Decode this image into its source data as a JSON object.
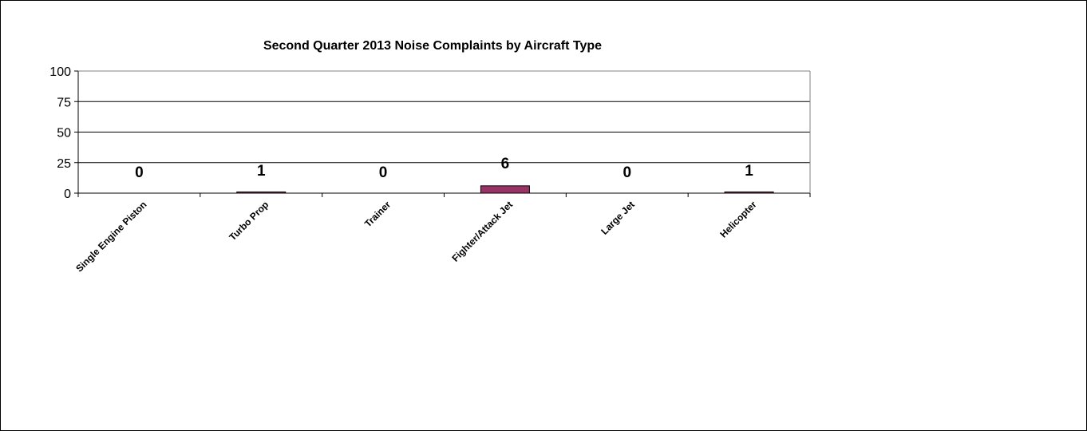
{
  "chart_data": {
    "type": "bar",
    "title": "Second Quarter 2013 Noise Complaints by Aircraft Type",
    "categories": [
      "Single Engine Piston",
      "Turbo Prop",
      "Trainer",
      "Fighter/Attack Jet",
      "Large Jet",
      "Helicopter"
    ],
    "values": [
      0,
      1,
      0,
      6,
      0,
      1
    ],
    "data_labels": [
      "0",
      "1",
      "0",
      "6",
      "0",
      "1"
    ],
    "xlabel": "",
    "ylabel": "",
    "ylim": [
      0,
      100
    ],
    "yticks": [
      0,
      25,
      50,
      75,
      100
    ],
    "ytick_labels": [
      "0",
      "25",
      "50",
      "75",
      "100"
    ],
    "grid": true,
    "legend": "none",
    "bar_color": "#993366",
    "bar_edge_color": "#000000"
  }
}
